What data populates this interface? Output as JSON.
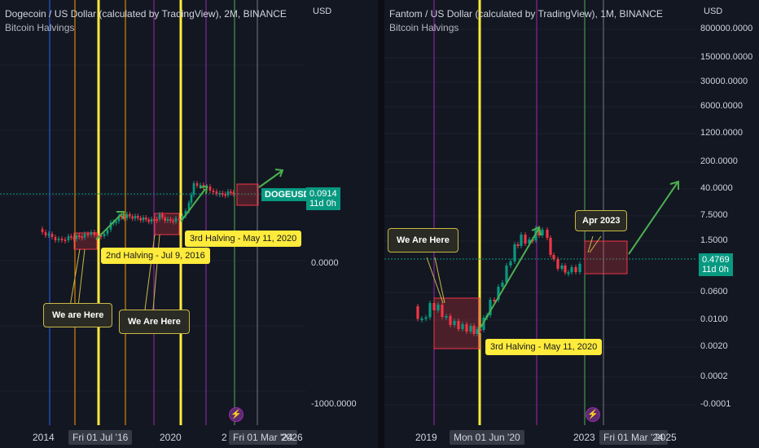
{
  "left_chart": {
    "title": "Dogecoin / US Dollar (calculated by TradingView), 2M, BINANCE",
    "indicator": "Bitcoin Halvings",
    "currency": "USD",
    "y_labels": [
      "0.0000",
      "-1000.0000"
    ],
    "x_labels": [
      "2014",
      "2020",
      "2",
      "2026"
    ],
    "x_highlight": [
      "Fri 01 Jul '16",
      "Fri 01 Mar '24"
    ],
    "symbol_tag": "DOGEUSD",
    "price": "0.0914",
    "countdown": "11d 0h",
    "notes": [
      "2nd Halving - Jul 9, 2016",
      "3rd Halving - May 11, 2020"
    ],
    "callouts": [
      "We are Here",
      "We Are Here"
    ],
    "flash_icon": "lightning-icon"
  },
  "right_chart": {
    "title": "Fantom / US Dollar (calculated by TradingView), 1M, BINANCE",
    "indicator": "Bitcoin Halvings",
    "currency": "USD",
    "y_labels": [
      "800000.0000",
      "150000.0000",
      "30000.0000",
      "6000.0000",
      "1200.0000",
      "200.0000",
      "40.0000",
      "7.5000",
      "1.5000",
      "0.0600",
      "0.0100",
      "0.0020",
      "0.0002",
      "-0.0001"
    ],
    "x_labels": [
      "2019",
      "2023",
      "2025"
    ],
    "x_highlight": [
      "Mon 01 Jun '20",
      "Fri 01 Mar '24"
    ],
    "price": "0.4769",
    "countdown": "11d 0h",
    "notes": [
      "3rd Halving - May 11, 2020"
    ],
    "callouts": [
      "We Are Here",
      "Apr 2023"
    ],
    "flash_icon": "lightning-icon"
  },
  "colors": {
    "up": "#089981",
    "down": "#f23645",
    "halving": "#ffeb3b",
    "arrow": "#4caf50"
  }
}
